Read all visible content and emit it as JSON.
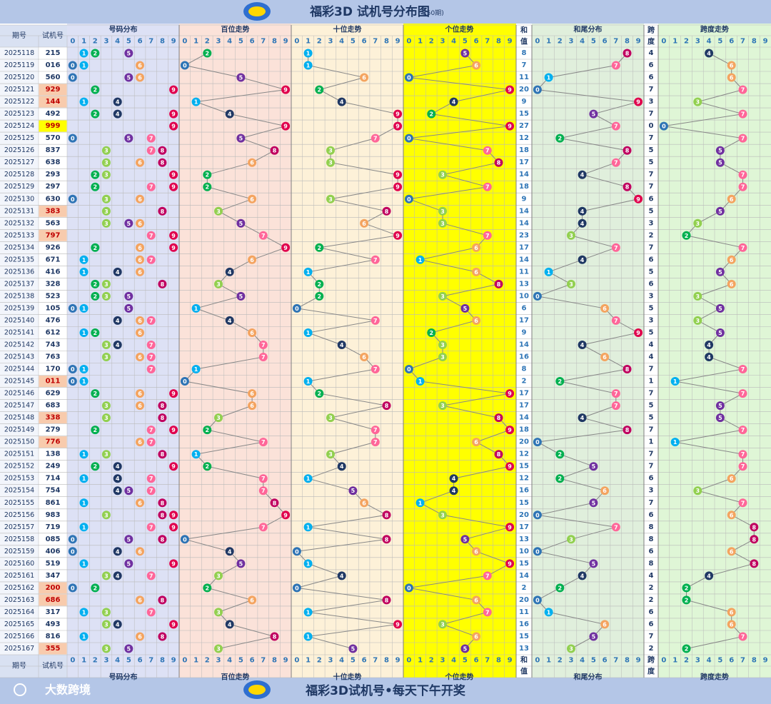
{
  "header": {
    "title": "福彩3D 试机号分布图",
    "subtitle": "(50期)",
    "columns": {
      "period": "期号",
      "trial": "试机号",
      "dist": "号码分布",
      "hundreds": "百位走势",
      "tens": "十位走势",
      "units": "个位走势",
      "sum_top": "和",
      "sum_bottom": "值",
      "tail": "和尾分布",
      "span_top": "跨",
      "span_bottom": "度",
      "span_trend": "跨度走势"
    },
    "digits": [
      "0",
      "1",
      "2",
      "3",
      "4",
      "5",
      "6",
      "7",
      "8",
      "9"
    ]
  },
  "footer": {
    "brand": "大数跨境",
    "slogan": "福彩3D试机号•每天下午开奖"
  },
  "colors": {
    "title_bar": "#b4c6e7",
    "dist_bg": "#dde1f5",
    "hundreds_bg": "#fbe2d9",
    "tens_bg": "#fdf1d8",
    "units_bg": "#ffff00",
    "tail_bg": "#e0efdc",
    "span_bg": "#dff6d6",
    "highlight_orange": "#f8cbad",
    "highlight_yellow": "#ffff00",
    "grid": "#b9b9b9",
    "line": "#888888"
  },
  "ball_colors": [
    "#2e74b5",
    "#00b0f0",
    "#00b050",
    "#92d050",
    "#203864",
    "#7030a0",
    "#f4a460",
    "#ff6699",
    "#c00060",
    "#e0004d"
  ],
  "chart_data": {
    "type": "table",
    "title": "福彩3D 试机号分布图",
    "rows": [
      {
        "period": "2025118",
        "num": "215",
        "hl": ""
      },
      {
        "period": "2025119",
        "num": "016",
        "hl": ""
      },
      {
        "period": "2025120",
        "num": "560",
        "hl": ""
      },
      {
        "period": "2025121",
        "num": "929",
        "hl": "orange"
      },
      {
        "period": "2025122",
        "num": "144",
        "hl": "orange"
      },
      {
        "period": "2025123",
        "num": "492",
        "hl": ""
      },
      {
        "period": "2025124",
        "num": "999",
        "hl": "yellow"
      },
      {
        "period": "2025125",
        "num": "570",
        "hl": ""
      },
      {
        "period": "2025126",
        "num": "837",
        "hl": ""
      },
      {
        "period": "2025127",
        "num": "638",
        "hl": ""
      },
      {
        "period": "2025128",
        "num": "293",
        "hl": ""
      },
      {
        "period": "2025129",
        "num": "297",
        "hl": ""
      },
      {
        "period": "2025130",
        "num": "630",
        "hl": ""
      },
      {
        "period": "2025131",
        "num": "383",
        "hl": "orange"
      },
      {
        "period": "2025132",
        "num": "563",
        "hl": ""
      },
      {
        "period": "2025133",
        "num": "797",
        "hl": "orange"
      },
      {
        "period": "2025134",
        "num": "926",
        "hl": ""
      },
      {
        "period": "2025135",
        "num": "671",
        "hl": ""
      },
      {
        "period": "2025136",
        "num": "416",
        "hl": ""
      },
      {
        "period": "2025137",
        "num": "328",
        "hl": ""
      },
      {
        "period": "2025138",
        "num": "523",
        "hl": ""
      },
      {
        "period": "2025139",
        "num": "105",
        "hl": ""
      },
      {
        "period": "2025140",
        "num": "476",
        "hl": ""
      },
      {
        "period": "2025141",
        "num": "612",
        "hl": ""
      },
      {
        "period": "2025142",
        "num": "743",
        "hl": ""
      },
      {
        "period": "2025143",
        "num": "763",
        "hl": ""
      },
      {
        "period": "2025144",
        "num": "170",
        "hl": ""
      },
      {
        "period": "2025145",
        "num": "011",
        "hl": "orange"
      },
      {
        "period": "2025146",
        "num": "629",
        "hl": ""
      },
      {
        "period": "2025147",
        "num": "683",
        "hl": ""
      },
      {
        "period": "2025148",
        "num": "338",
        "hl": "orange"
      },
      {
        "period": "2025149",
        "num": "279",
        "hl": ""
      },
      {
        "period": "2025150",
        "num": "776",
        "hl": "orange"
      },
      {
        "period": "2025151",
        "num": "138",
        "hl": ""
      },
      {
        "period": "2025152",
        "num": "249",
        "hl": ""
      },
      {
        "period": "2025153",
        "num": "714",
        "hl": ""
      },
      {
        "period": "2025154",
        "num": "754",
        "hl": ""
      },
      {
        "period": "2025155",
        "num": "861",
        "hl": ""
      },
      {
        "period": "2025156",
        "num": "983",
        "hl": ""
      },
      {
        "period": "2025157",
        "num": "719",
        "hl": ""
      },
      {
        "period": "2025158",
        "num": "085",
        "hl": ""
      },
      {
        "period": "2025159",
        "num": "406",
        "hl": ""
      },
      {
        "period": "2025160",
        "num": "519",
        "hl": ""
      },
      {
        "period": "2025161",
        "num": "347",
        "hl": ""
      },
      {
        "period": "2025162",
        "num": "200",
        "hl": "orange"
      },
      {
        "period": "2025163",
        "num": "686",
        "hl": "orange"
      },
      {
        "period": "2025164",
        "num": "317",
        "hl": ""
      },
      {
        "period": "2025165",
        "num": "493",
        "hl": ""
      },
      {
        "period": "2025166",
        "num": "816",
        "hl": ""
      },
      {
        "period": "2025167",
        "num": "355",
        "hl": "orange"
      }
    ]
  }
}
